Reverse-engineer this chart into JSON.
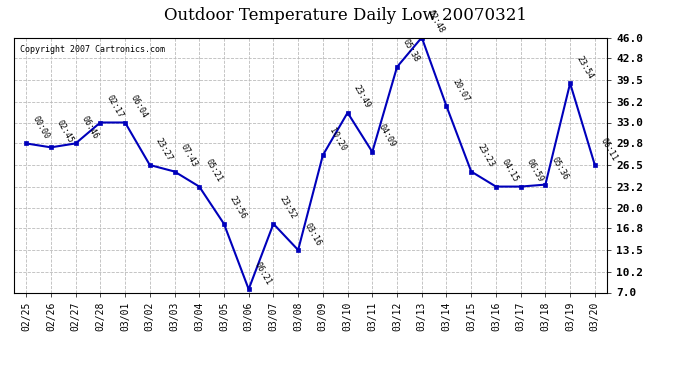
{
  "title": "Outdoor Temperature Daily Low 20070321",
  "copyright": "Copyright 2007 Cartronics.com",
  "x_labels": [
    "02/25",
    "02/26",
    "02/27",
    "02/28",
    "03/01",
    "03/02",
    "03/03",
    "03/04",
    "03/05",
    "03/06",
    "03/07",
    "03/08",
    "03/09",
    "03/10",
    "03/11",
    "03/12",
    "03/13",
    "03/14",
    "03/15",
    "03/16",
    "03/17",
    "03/18",
    "03/19",
    "03/20"
  ],
  "y_values": [
    29.8,
    29.2,
    29.8,
    33.0,
    33.0,
    26.5,
    25.5,
    23.2,
    17.5,
    7.5,
    17.5,
    13.5,
    28.0,
    34.5,
    28.5,
    41.5,
    46.0,
    35.5,
    25.5,
    23.2,
    23.2,
    23.5,
    39.0,
    26.5
  ],
  "point_labels": [
    "00:00",
    "02:45",
    "06:46",
    "02:17",
    "06:04",
    "23:27",
    "07:43",
    "05:21",
    "23:56",
    "06:21",
    "23:52",
    "03:16",
    "10:20",
    "23:49",
    "04:09",
    "05:38",
    "02:48",
    "20:07",
    "23:23",
    "04:15",
    "06:59",
    "05:36",
    "23:54",
    "06:11"
  ],
  "ylim_min": 7.0,
  "ylim_max": 46.0,
  "yticks": [
    7.0,
    10.2,
    13.5,
    16.8,
    20.0,
    23.2,
    26.5,
    29.8,
    33.0,
    36.2,
    39.5,
    42.8,
    46.0
  ],
  "line_color": "#0000bb",
  "marker_color": "#0000bb",
  "bg_color": "#ffffff",
  "grid_color": "#aaaaaa",
  "title_fontsize": 12,
  "xlabel_fontsize": 7,
  "ylabel_fontsize": 8,
  "point_label_fontsize": 6,
  "copyright_fontsize": 6
}
